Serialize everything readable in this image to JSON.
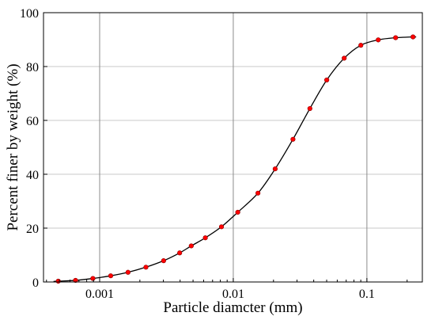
{
  "chart_data": {
    "type": "scatter",
    "xlabel": "Particle diamcter (mm)",
    "ylabel": "Percent finer by weight (%)",
    "x_scale": "log",
    "xlim": [
      0.00038,
      0.26
    ],
    "ylim": [
      0,
      100
    ],
    "x_ticks": [
      {
        "value": 0.001,
        "label": "0.001"
      },
      {
        "value": 0.01,
        "label": "0.01"
      },
      {
        "value": 0.1,
        "label": "0.1"
      }
    ],
    "y_ticks": [
      {
        "value": 0,
        "label": "0"
      },
      {
        "value": 20,
        "label": "20"
      },
      {
        "value": 40,
        "label": "40"
      },
      {
        "value": 60,
        "label": "60"
      },
      {
        "value": 80,
        "label": "80"
      },
      {
        "value": 100,
        "label": "100"
      }
    ],
    "grid": true,
    "series": [
      {
        "marker_color": "#ff0000",
        "line_color": "#000000",
        "points": [
          {
            "x": 0.00049,
            "y": 0.3
          },
          {
            "x": 0.00066,
            "y": 0.6
          },
          {
            "x": 0.00089,
            "y": 1.3
          },
          {
            "x": 0.00121,
            "y": 2.3
          },
          {
            "x": 0.00163,
            "y": 3.6
          },
          {
            "x": 0.00222,
            "y": 5.5
          },
          {
            "x": 0.00301,
            "y": 7.9
          },
          {
            "x": 0.00397,
            "y": 10.8
          },
          {
            "x": 0.00485,
            "y": 13.4
          },
          {
            "x": 0.00618,
            "y": 16.4
          },
          {
            "x": 0.00816,
            "y": 20.5
          },
          {
            "x": 0.01081,
            "y": 25.9
          },
          {
            "x": 0.0153,
            "y": 33.0
          },
          {
            "x": 0.02058,
            "y": 42.0
          },
          {
            "x": 0.02797,
            "y": 53.0
          },
          {
            "x": 0.03745,
            "y": 64.4
          },
          {
            "x": 0.05006,
            "y": 75.0
          },
          {
            "x": 0.06763,
            "y": 83.1
          },
          {
            "x": 0.09009,
            "y": 87.9
          },
          {
            "x": 0.12158,
            "y": 89.9
          },
          {
            "x": 0.16402,
            "y": 90.7
          },
          {
            "x": 0.22132,
            "y": 91.0
          }
        ]
      }
    ]
  }
}
